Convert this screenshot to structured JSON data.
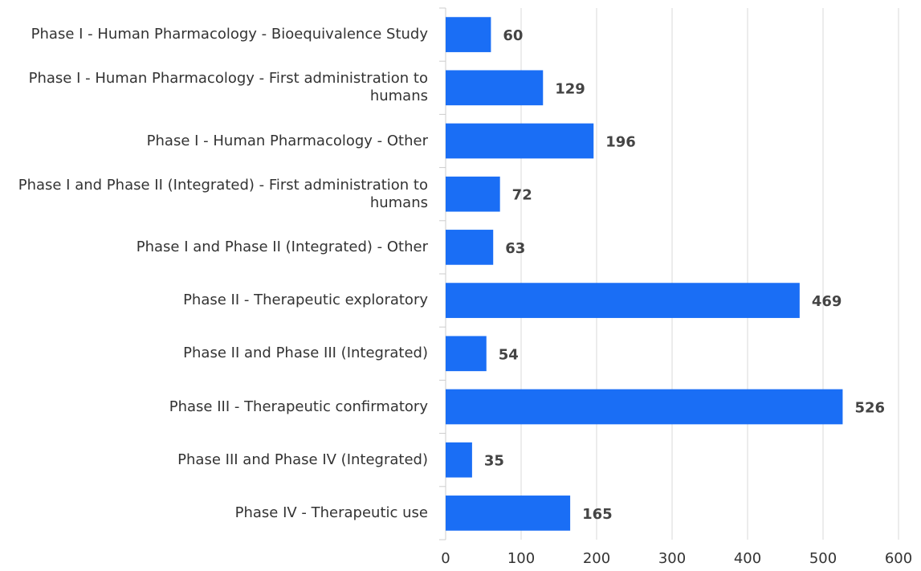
{
  "chart_data": {
    "type": "barh",
    "categories": [
      "Phase I - Human Pharmacology - Bioequivalence Study",
      "Phase I - Human Pharmacology - First administration to humans",
      "Phase I - Human Pharmacology - Other",
      "Phase I and Phase II (Integrated) - First administration to humans",
      "Phase I and Phase II (Integrated) - Other",
      "Phase II - Therapeutic exploratory",
      "Phase II and Phase III (Integrated)",
      "Phase III - Therapeutic confirmatory",
      "Phase III and Phase IV (Integrated)",
      "Phase IV - Therapeutic use"
    ],
    "values": [
      60,
      129,
      196,
      72,
      63,
      469,
      54,
      526,
      35,
      165
    ],
    "color": "#1a6ef5",
    "xlim": [
      0,
      600
    ],
    "xticks": [
      0,
      100,
      200,
      300,
      400,
      500,
      600
    ],
    "grid": true
  }
}
